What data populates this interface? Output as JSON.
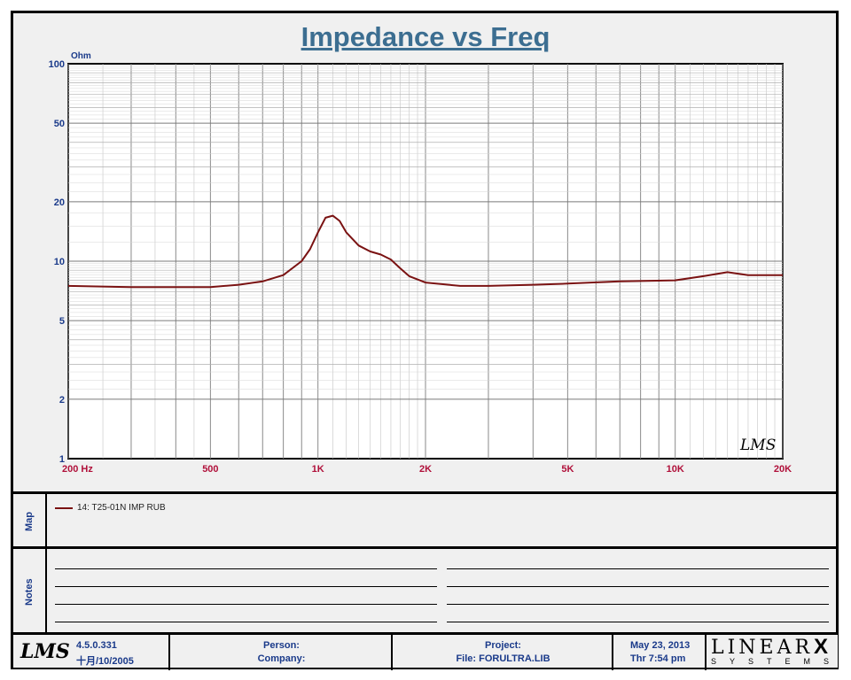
{
  "title": "Impedance vs Freq",
  "colors": {
    "curve": "#7a1212",
    "axis_text": "#1a3a8a",
    "freq_text": "#b0103a",
    "title": "#3c6e91"
  },
  "chart_data": {
    "type": "line",
    "title": "Impedance vs Freq",
    "ylabel": "Ohm",
    "xlabel": "Hz",
    "x_scale": "log",
    "y_scale": "log",
    "xlim": [
      200,
      20000
    ],
    "ylim": [
      1,
      100
    ],
    "grid": true,
    "x_ticks": [
      {
        "value": 200,
        "label": "200  Hz"
      },
      {
        "value": 500,
        "label": "500"
      },
      {
        "value": 1000,
        "label": "1K"
      },
      {
        "value": 2000,
        "label": "2K"
      },
      {
        "value": 5000,
        "label": "5K"
      },
      {
        "value": 10000,
        "label": "10K"
      },
      {
        "value": 20000,
        "label": "20K"
      }
    ],
    "y_ticks": [
      {
        "value": 100,
        "label": "100"
      },
      {
        "value": 50,
        "label": "50"
      },
      {
        "value": 20,
        "label": "20"
      },
      {
        "value": 10,
        "label": "10"
      },
      {
        "value": 5,
        "label": "5"
      },
      {
        "value": 2,
        "label": "2"
      },
      {
        "value": 1,
        "label": "1"
      }
    ],
    "series": [
      {
        "name": "14: T25-01N IMP RUB",
        "x": [
          200,
          300,
          500,
          600,
          700,
          800,
          900,
          950,
          1000,
          1050,
          1100,
          1150,
          1200,
          1300,
          1400,
          1500,
          1600,
          1700,
          1800,
          2000,
          2500,
          3000,
          4000,
          5000,
          7000,
          10000,
          12000,
          14000,
          16000,
          20000
        ],
        "y": [
          7.5,
          7.4,
          7.4,
          7.6,
          7.9,
          8.5,
          10.0,
          11.5,
          14.0,
          16.6,
          17.0,
          16.0,
          14.0,
          12.0,
          11.2,
          10.8,
          10.2,
          9.2,
          8.4,
          7.8,
          7.5,
          7.5,
          7.6,
          7.7,
          7.9,
          8.0,
          8.4,
          8.8,
          8.5,
          8.5
        ]
      }
    ],
    "watermark": "LMS"
  },
  "map": {
    "label": "Map",
    "legend_text": "14: T25-01N IMP RUB"
  },
  "notes": {
    "label": "Notes"
  },
  "footer": {
    "logo": "LMS",
    "version": "4.5.0.331",
    "date_build": "十月/10/2005",
    "person_label": "Person:",
    "company_label": "Company:",
    "project_label": "Project:",
    "file_label": "File: FORULTRA.LIB",
    "date": "May 23, 2013",
    "time": "Thr  7:54 pm",
    "brand_main": "LINEAR",
    "brand_x": "X",
    "brand_sub": "SYSTEMS"
  }
}
